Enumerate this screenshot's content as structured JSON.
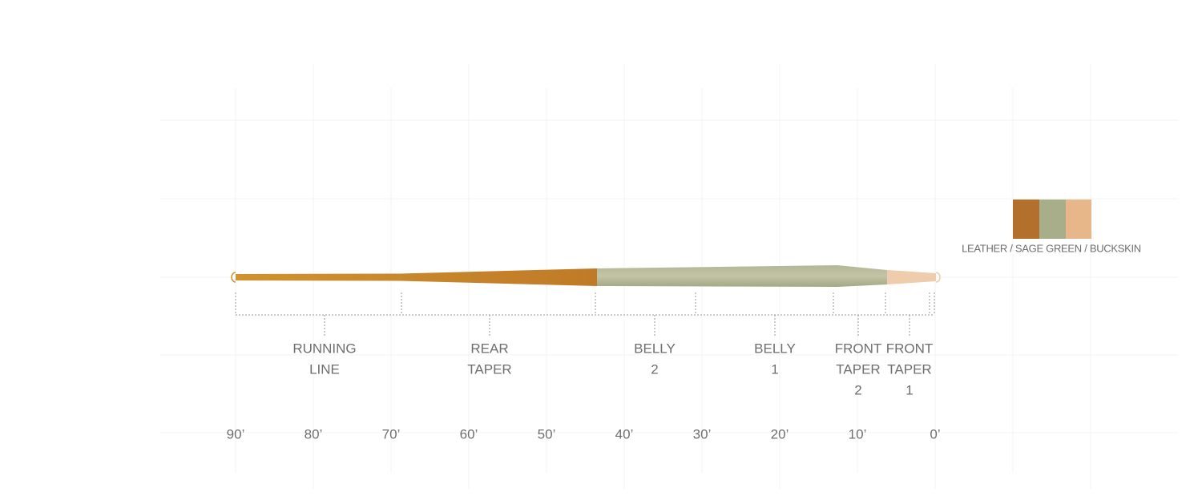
{
  "legend": {
    "label": "LEATHER / SAGE GREEN / BUCKSKIN"
  },
  "sections": [
    {
      "lines": [
        "RUNNING",
        "LINE"
      ]
    },
    {
      "lines": [
        "REAR",
        "TAPER"
      ]
    },
    {
      "lines": [
        "BELLY",
        "2"
      ]
    },
    {
      "lines": [
        "BELLY",
        "1"
      ]
    },
    {
      "lines": [
        "FRONT",
        "TAPER",
        "2"
      ]
    },
    {
      "lines": [
        "FRONT",
        "TAPER",
        "1"
      ]
    }
  ],
  "scale": [
    "90’",
    "80’",
    "70’",
    "60’",
    "50’",
    "40’",
    "30’",
    "20’",
    "10’",
    "0’"
  ]
}
